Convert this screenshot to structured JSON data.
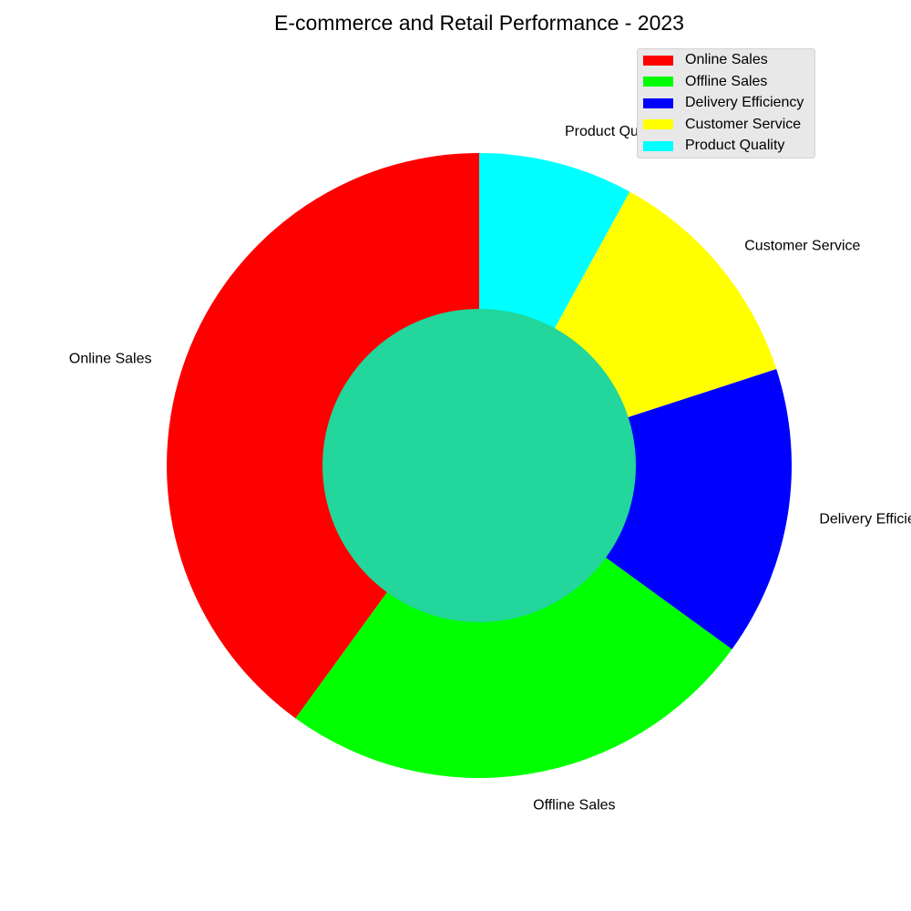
{
  "chart_data": {
    "type": "pie",
    "donut": true,
    "title": "E-commerce and Retail Performance - 2023",
    "categories": [
      "Online Sales",
      "Offline Sales",
      "Delivery Efficiency",
      "Customer Service",
      "Product Quality"
    ],
    "values": [
      40,
      25,
      15,
      12,
      8
    ],
    "colors": [
      "#ff0000",
      "#00ff00",
      "#0000ff",
      "#ffff00",
      "#00ffff"
    ],
    "center_color": "#22d69c",
    "start_angle": "top",
    "direction": "counterclockwise",
    "legend_placement": "top-right"
  }
}
